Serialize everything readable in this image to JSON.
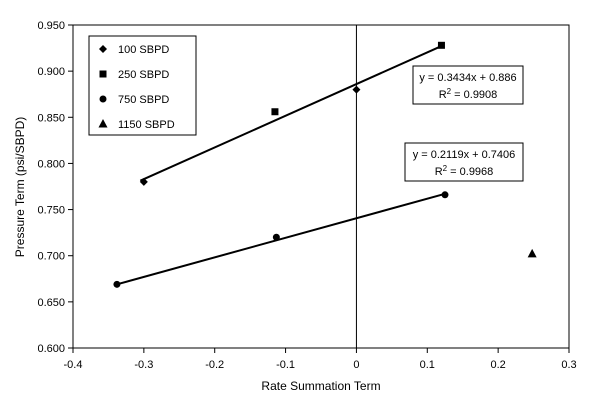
{
  "colors": {
    "axis": "#000000",
    "series": "#000000",
    "background": "#ffffff"
  },
  "chart_data": {
    "type": "scatter",
    "title": "",
    "xlabel": "Rate Summation Term",
    "ylabel": "Pressure Term (psi/SBPD)",
    "xlim": [
      -0.4,
      0.3
    ],
    "ylim": [
      0.6,
      0.95
    ],
    "xticks": [
      -0.4,
      -0.3,
      -0.2,
      -0.1,
      0,
      0.1,
      0.2,
      0.3
    ],
    "xtick_labels": [
      "-0.4",
      "-0.3",
      "-0.2",
      "-0.1",
      "0",
      "0.1",
      "0.2",
      "0.3"
    ],
    "yticks": [
      0.6,
      0.65,
      0.7,
      0.75,
      0.8,
      0.85,
      0.9,
      0.95
    ],
    "ytick_labels": [
      "0.600",
      "0.650",
      "0.700",
      "0.750",
      "0.800",
      "0.850",
      "0.900",
      "0.950"
    ],
    "grid": false,
    "vertical_reference_x": 0,
    "legend_position": "top-left",
    "series": [
      {
        "name": "100 SBPD",
        "marker": "diamond",
        "x": [
          -0.3,
          0.0
        ],
        "y": [
          0.78,
          0.88
        ]
      },
      {
        "name": "250 SBPD",
        "marker": "square",
        "x": [
          -0.115,
          0.12
        ],
        "y": [
          0.856,
          0.928
        ]
      },
      {
        "name": "750 SBPD",
        "marker": "circle",
        "x": [
          -0.338,
          -0.113,
          0.125
        ],
        "y": [
          0.669,
          0.72,
          0.766
        ]
      },
      {
        "name": "1150 SBPD",
        "marker": "triangle",
        "x": [
          0.248
        ],
        "y": [
          0.702
        ]
      }
    ],
    "trendlines": [
      {
        "x_range": [
          -0.305,
          0.12
        ],
        "slope": 0.3434,
        "intercept": 0.886,
        "equation": "y = 0.3434x + 0.886",
        "r2_label": "R",
        "r2_exp": "2",
        "r2_value": " = 0.9908"
      },
      {
        "x_range": [
          -0.338,
          0.125
        ],
        "slope": 0.2119,
        "intercept": 0.7406,
        "equation": "y = 0.2119x + 0.7406",
        "r2_label": "R",
        "r2_exp": "2",
        "r2_value": " = 0.9968"
      }
    ]
  }
}
